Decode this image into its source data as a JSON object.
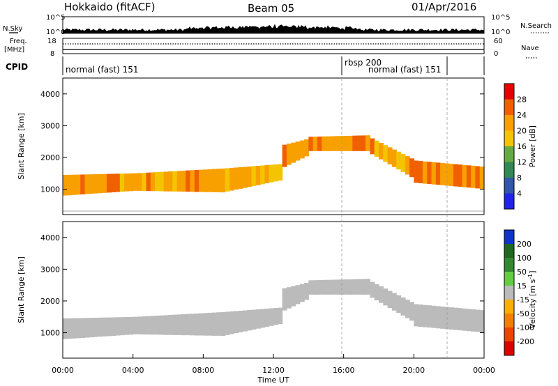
{
  "header": {
    "radar": "Hokkaido (fitACF)",
    "beam": "Beam 05",
    "date": "01/Apr/2016"
  },
  "top_strip": {
    "nsky_label": "N.Sky",
    "nsky_ticks": [
      "10^5",
      "10^0"
    ],
    "nsky_right_ticks": [
      "10^5",
      "10^0"
    ],
    "nsearch_label": "N.Search",
    "freq_label_1": "Freq.",
    "freq_label_2": "[MHz]",
    "freq_ticks": [
      "18",
      "8"
    ],
    "nave_ticks": [
      "60",
      "0"
    ],
    "nave_label": "Nave",
    "cpid_label": "CPID"
  },
  "cpid_segments": [
    {
      "start_hour": 0,
      "end_hour": 16,
      "label": "normal (fast) 151"
    },
    {
      "start_hour": 16,
      "end_hour": 22,
      "label": "rbsp 200"
    },
    {
      "start_hour": 16,
      "end_hour": 22,
      "label": "normal (fast) 151"
    }
  ],
  "chart_data": [
    {
      "type": "heatmap",
      "name": "Power",
      "ylabel": "Slant Range [km]",
      "xlabel": "",
      "xlim": [
        0,
        24
      ],
      "ylim": [
        200,
        4500
      ],
      "yticks": [
        1000,
        2000,
        3000,
        4000
      ],
      "colorbar_label": "Power [dB]",
      "colorbar_ticks": [
        "4",
        "8",
        "12",
        "16",
        "20",
        "24",
        "28"
      ],
      "colorbar_colors": [
        "#2222ee",
        "#3355aa",
        "#338855",
        "#66aa44",
        "#f4c400",
        "#f8a000",
        "#f06000",
        "#e80000"
      ],
      "bands": [
        {
          "start": 0.0,
          "end": 4.0,
          "lo_start": 800,
          "hi_start": 1450,
          "lo_end": 950,
          "hi_end": 1500,
          "value": 24
        },
        {
          "start": 4.0,
          "end": 9.0,
          "lo_start": 950,
          "hi_start": 1500,
          "lo_end": 900,
          "hi_end": 1650,
          "value": 24
        },
        {
          "start": 9.0,
          "end": 12.5,
          "lo_start": 900,
          "hi_start": 1650,
          "lo_end": 1300,
          "hi_end": 1800,
          "value": 22
        },
        {
          "start": 12.5,
          "end": 14.0,
          "lo_start": 1700,
          "hi_start": 2400,
          "lo_end": 2100,
          "hi_end": 2600,
          "value": 24
        },
        {
          "start": 14.0,
          "end": 17.5,
          "lo_start": 2200,
          "hi_start": 2650,
          "lo_end": 2200,
          "hi_end": 2700,
          "value": 26
        },
        {
          "start": 17.5,
          "end": 20.0,
          "lo_start": 2100,
          "hi_start": 2600,
          "lo_end": 1300,
          "hi_end": 1900,
          "value": 24
        },
        {
          "start": 20.0,
          "end": 24.0,
          "lo_start": 1200,
          "hi_start": 1900,
          "lo_end": 1000,
          "hi_end": 1700,
          "value": 26
        }
      ]
    },
    {
      "type": "heatmap",
      "name": "Velocity",
      "ylabel": "Slant Range [km]",
      "xlabel": "Time UT",
      "xlim": [
        0,
        24
      ],
      "ylim": [
        200,
        4500
      ],
      "yticks": [
        1000,
        2000,
        3000,
        4000
      ],
      "xticks": [
        "00:00",
        "04:00",
        "08:00",
        "12:00",
        "16:00",
        "20:00",
        "00:00"
      ],
      "colorbar_label": "Velocity [m s",
      "colorbar_label_sup": "-1",
      "colorbar_label_end": "]",
      "colorbar_ticks": [
        "200",
        "100",
        "50",
        "15",
        "-15",
        "-50",
        "-100",
        "-200"
      ],
      "colorbar_colors": [
        "#1133cc",
        "#226622",
        "#338833",
        "#66cc44",
        "#bbbbbb",
        "#f8b000",
        "#f08000",
        "#ee4400",
        "#dd0000"
      ],
      "bands": [
        {
          "start": 0.0,
          "end": 4.0,
          "lo_start": 800,
          "hi_start": 1450,
          "lo_end": 950,
          "hi_end": 1500,
          "value": 0
        },
        {
          "start": 4.0,
          "end": 9.0,
          "lo_start": 950,
          "hi_start": 1500,
          "lo_end": 900,
          "hi_end": 1650,
          "value": 0
        },
        {
          "start": 9.0,
          "end": 12.5,
          "lo_start": 900,
          "hi_start": 1650,
          "lo_end": 1300,
          "hi_end": 1800,
          "value": 0
        },
        {
          "start": 12.5,
          "end": 14.0,
          "lo_start": 1700,
          "hi_start": 2400,
          "lo_end": 2100,
          "hi_end": 2600,
          "value": 0
        },
        {
          "start": 14.0,
          "end": 17.5,
          "lo_start": 2200,
          "hi_start": 2650,
          "lo_end": 2200,
          "hi_end": 2700,
          "value": 0
        },
        {
          "start": 17.5,
          "end": 20.0,
          "lo_start": 2100,
          "hi_start": 2600,
          "lo_end": 1300,
          "hi_end": 1900,
          "value": 0
        },
        {
          "start": 20.0,
          "end": 24.0,
          "lo_start": 1200,
          "hi_start": 1900,
          "lo_end": 1000,
          "hi_end": 1700,
          "value": 0
        }
      ]
    }
  ]
}
